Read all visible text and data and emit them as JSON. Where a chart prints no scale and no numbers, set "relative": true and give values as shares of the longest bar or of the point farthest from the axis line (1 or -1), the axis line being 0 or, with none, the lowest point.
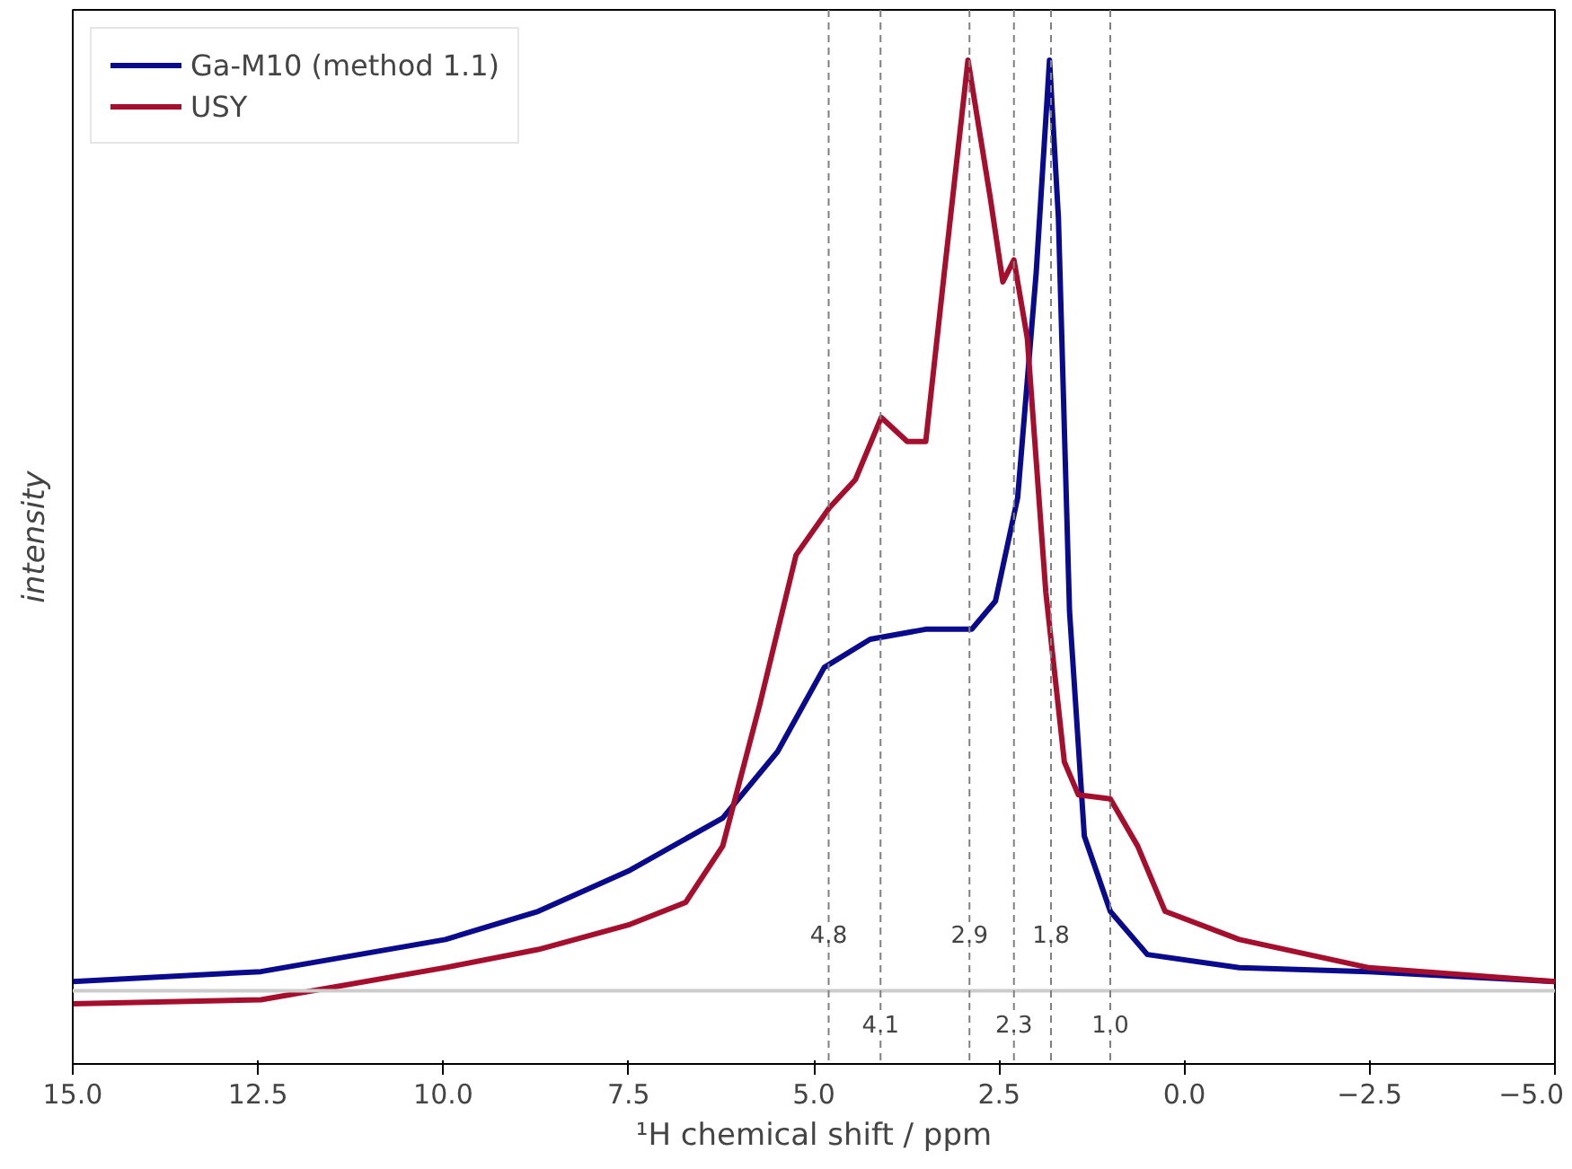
{
  "chart_data": {
    "type": "line",
    "relative": true,
    "xlabel": "¹H chemical shift / ppm",
    "ylabel": "intensity",
    "xlim": [
      15,
      -5
    ],
    "xticks": [
      {
        "value": 15,
        "label": "15.0"
      },
      {
        "value": 12.5,
        "label": "12.5"
      },
      {
        "value": 10,
        "label": "10.0"
      },
      {
        "value": 7.5,
        "label": "7.5"
      },
      {
        "value": 5,
        "label": "5.0"
      },
      {
        "value": 2.5,
        "label": "2.5"
      },
      {
        "value": 0,
        "label": "0.0"
      },
      {
        "value": -2.5,
        "label": "−2.5"
      },
      {
        "value": -5,
        "label": "−5.0"
      }
    ],
    "tick_labels": "x",
    "grid": false,
    "legend": "top left",
    "line_style": "solid",
    "marker": "none",
    "series": [
      {
        "name": "Ga-M10 (method 1.1)",
        "color": "#0a0a8c",
        "x": [
          15,
          12.46,
          9.97,
          8.72,
          7.48,
          6.23,
          5.49,
          4.86,
          4.24,
          3.49,
          2.87,
          2.55,
          2.25,
          2.0,
          1.82,
          1.7,
          1.55,
          1.35,
          1.0,
          0.5,
          -0.74,
          -2.48,
          -5
        ],
        "values": [
          0.082,
          0.092,
          0.124,
          0.152,
          0.193,
          0.245,
          0.311,
          0.395,
          0.423,
          0.433,
          0.433,
          0.461,
          0.564,
          0.788,
          1.0,
          0.843,
          0.451,
          0.227,
          0.152,
          0.109,
          0.096,
          0.092,
          0.082
        ]
      },
      {
        "name": "USY",
        "color": "#a50f2d",
        "x": [
          15,
          12.46,
          9.97,
          8.72,
          7.48,
          6.73,
          6.23,
          5.73,
          5.24,
          4.79,
          4.44,
          4.09,
          3.74,
          3.49,
          3.24,
          2.92,
          2.62,
          2.45,
          2.3,
          2.12,
          1.87,
          1.62,
          1.43,
          1.0,
          0.63,
          0.26,
          -0.74,
          -2.48,
          -5
        ],
        "values": [
          0.06,
          0.064,
          0.096,
          0.114,
          0.139,
          0.161,
          0.217,
          0.358,
          0.507,
          0.554,
          0.582,
          0.644,
          0.62,
          0.62,
          0.788,
          1.0,
          0.863,
          0.779,
          0.801,
          0.723,
          0.47,
          0.301,
          0.268,
          0.264,
          0.217,
          0.152,
          0.124,
          0.096,
          0.082
        ]
      }
    ],
    "ref_lines": [
      {
        "axis": "y",
        "value": 0.073,
        "color": "#cccccc",
        "line_style": "solid"
      },
      {
        "axis": "x",
        "value": 4.8,
        "label": "4.8",
        "color": "#808080",
        "line_style": "dashed"
      },
      {
        "axis": "x",
        "value": 4.1,
        "label": "4.1",
        "color": "#808080",
        "line_style": "dashed"
      },
      {
        "axis": "x",
        "value": 2.9,
        "label": "2.9",
        "color": "#808080",
        "line_style": "dashed"
      },
      {
        "axis": "x",
        "value": 2.3,
        "label": "2.3",
        "color": "#808080",
        "line_style": "dashed"
      },
      {
        "axis": "x",
        "value": 1.8,
        "label": "1.8",
        "color": "#808080",
        "line_style": "dashed"
      },
      {
        "axis": "x",
        "value": 1.0,
        "label": "1.0",
        "color": "#808080",
        "line_style": "dashed"
      }
    ]
  }
}
